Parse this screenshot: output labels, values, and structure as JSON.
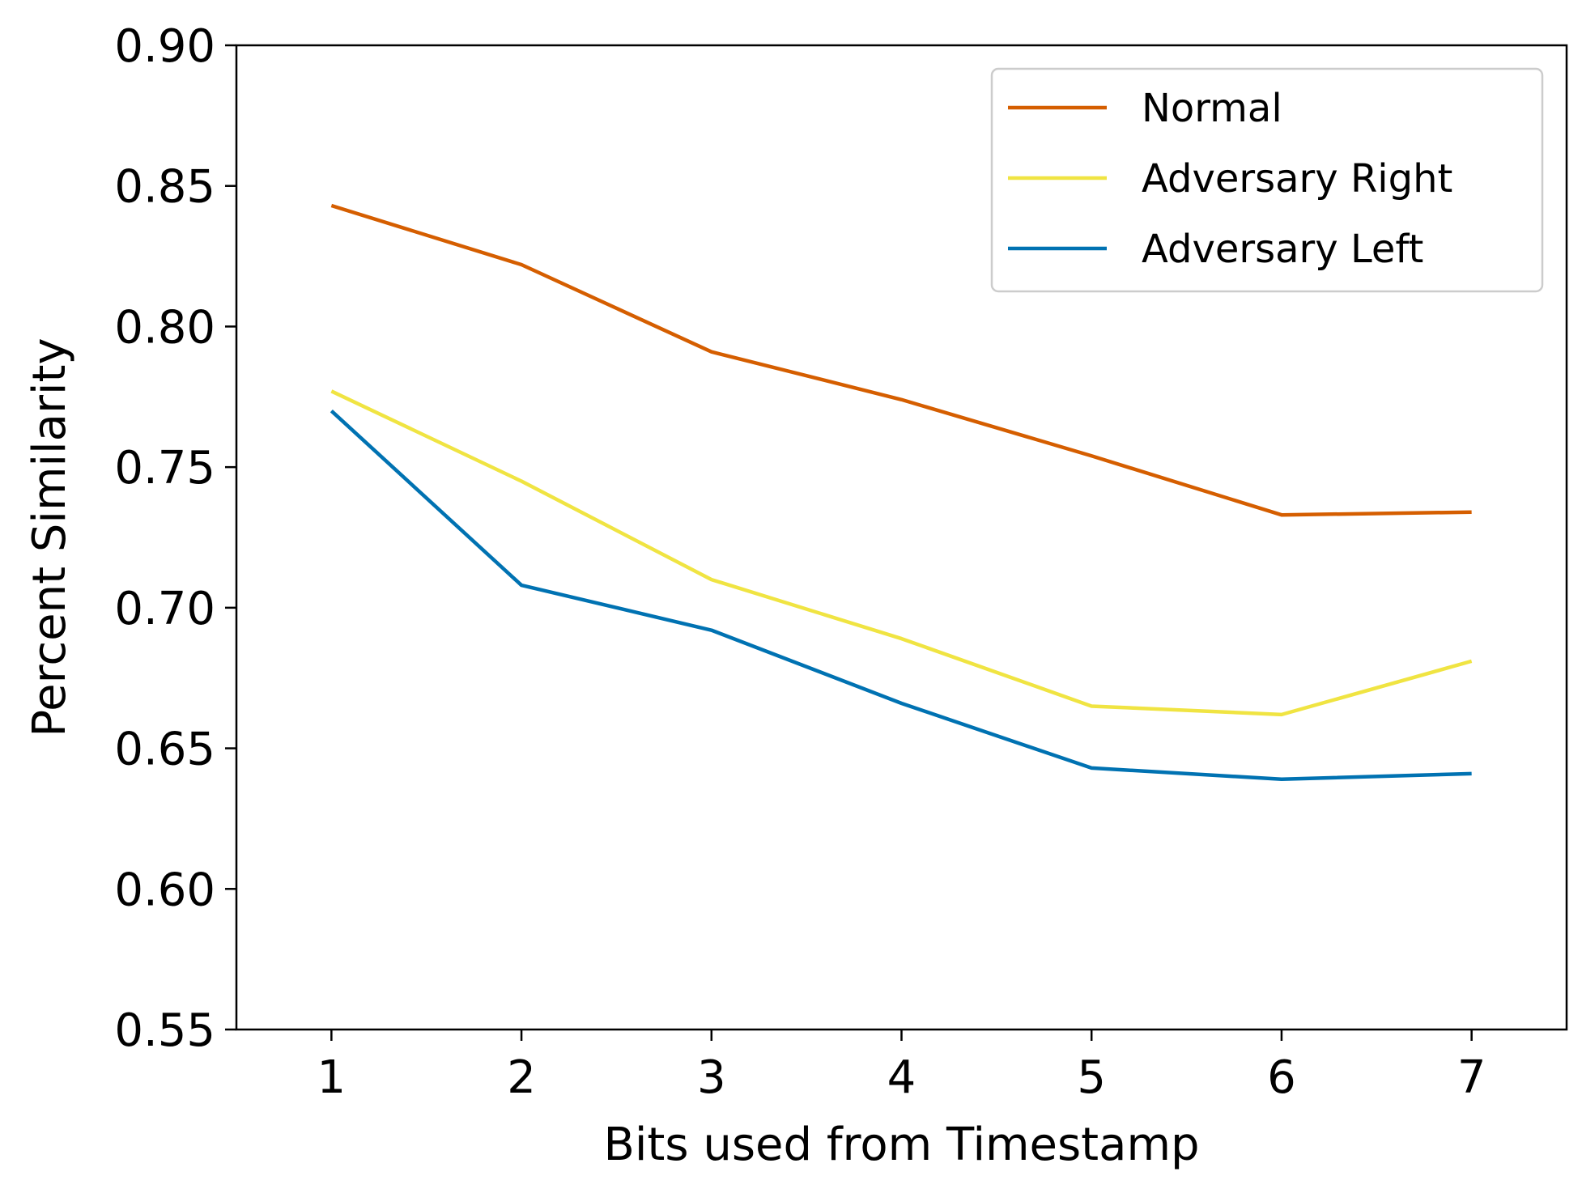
{
  "chart_data": {
    "type": "line",
    "title": "",
    "xlabel": "Bits used from Timestamp",
    "ylabel": "Percent Similarity",
    "x": [
      1,
      2,
      3,
      4,
      5,
      6,
      7
    ],
    "xticks": [
      "1",
      "2",
      "3",
      "4",
      "5",
      "6",
      "7"
    ],
    "xlim": [
      0.5,
      7.5
    ],
    "ylim": [
      0.55,
      0.9
    ],
    "yticks": [
      "0.55",
      "0.60",
      "0.65",
      "0.70",
      "0.75",
      "0.80",
      "0.85",
      "0.90"
    ],
    "grid": false,
    "legend_position": "top-right",
    "series": [
      {
        "name": "Normal",
        "color": "#d55e00",
        "values": [
          0.843,
          0.822,
          0.791,
          0.774,
          0.754,
          0.733,
          0.734
        ]
      },
      {
        "name": "Adversary Right",
        "color": "#f0e442",
        "values": [
          0.777,
          0.745,
          0.71,
          0.689,
          0.665,
          0.662,
          0.681
        ]
      },
      {
        "name": "Adversary Left",
        "color": "#0072b2",
        "values": [
          0.77,
          0.708,
          0.692,
          0.666,
          0.643,
          0.639,
          0.641
        ]
      }
    ]
  }
}
